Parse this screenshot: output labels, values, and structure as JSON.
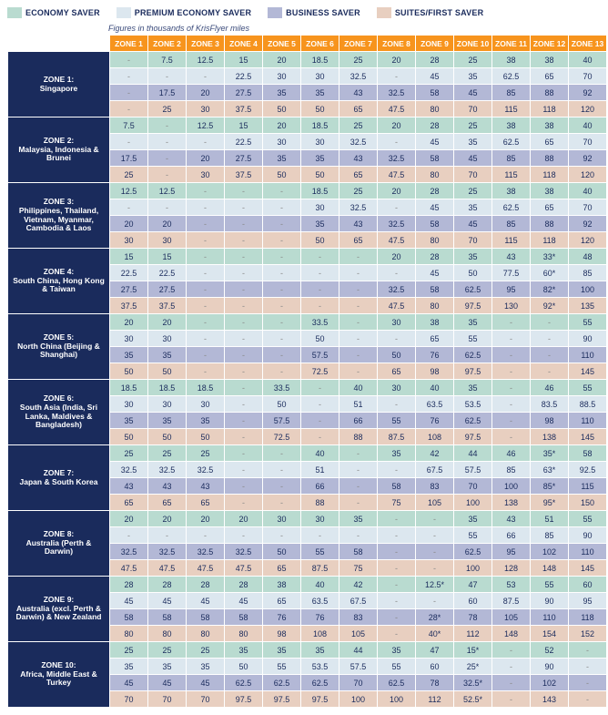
{
  "legend": [
    {
      "label": "ECONOMY SAVER",
      "color": "#b9dbd0"
    },
    {
      "label": "PREMIUM ECONOMY SAVER",
      "color": "#dce7ef"
    },
    {
      "label": "BUSINESS SAVER",
      "color": "#b3b8d6"
    },
    {
      "label": "SUITES/FIRST SAVER",
      "color": "#e8cfc0"
    }
  ],
  "subtitle": "Figures in thousands of KrisFlyer miles",
  "zone_cols": [
    "ZONE 1",
    "ZONE 2",
    "ZONE 3",
    "ZONE 4",
    "ZONE 5",
    "ZONE 6",
    "ZONE 7",
    "ZONE 8",
    "ZONE 9",
    "ZONE 10",
    "ZONE 11",
    "ZONE 12",
    "ZONE 13"
  ],
  "row_headers": [
    "ZONE 1:\nSingapore",
    "ZONE 2:\nMalaysia, Indonesia & Brunei",
    "ZONE 3:\nPhilippines, Thailand, Vietnam, Myanmar, Cambodia & Laos",
    "ZONE 4:\nSouth China, Hong Kong & Taiwan",
    "ZONE 5:\nNorth China (Beijing & Shanghai)",
    "ZONE 6:\nSouth Asia (India, Sri Lanka, Maldives & Bangladesh)",
    "ZONE 7:\nJapan & South Korea",
    "ZONE 8:\nAustralia (Perth & Darwin)",
    "ZONE 9:\nAustralia (excl. Perth & Darwin) & New Zealand",
    "ZONE 10:\nAfrica, Middle East & Turkey"
  ],
  "class_colors": [
    "#b9dbd0",
    "#dce7ef",
    "#b3b8d6",
    "#e8cfc0"
  ],
  "header_bg": "#f7941d",
  "rowhdr_bg": "#1a2b5c",
  "text_color": "#1a2b5c",
  "cell_fontsize": 9,
  "header_fontsize": 8.5,
  "dash": "-",
  "data": [
    [
      [
        "-",
        "7.5",
        "12.5",
        "15",
        "20",
        "18.5",
        "25",
        "20",
        "28",
        "25",
        "38",
        "38",
        "40"
      ],
      [
        "-",
        "-",
        "-",
        "22.5",
        "30",
        "30",
        "32.5",
        "-",
        "45",
        "35",
        "62.5",
        "65",
        "70"
      ],
      [
        "-",
        "17.5",
        "20",
        "27.5",
        "35",
        "35",
        "43",
        "32.5",
        "58",
        "45",
        "85",
        "88",
        "92"
      ],
      [
        "-",
        "25",
        "30",
        "37.5",
        "50",
        "50",
        "65",
        "47.5",
        "80",
        "70",
        "115",
        "118",
        "120"
      ]
    ],
    [
      [
        "7.5",
        "-",
        "12.5",
        "15",
        "20",
        "18.5",
        "25",
        "20",
        "28",
        "25",
        "38",
        "38",
        "40"
      ],
      [
        "-",
        "-",
        "-",
        "22.5",
        "30",
        "30",
        "32.5",
        "-",
        "45",
        "35",
        "62.5",
        "65",
        "70"
      ],
      [
        "17.5",
        "-",
        "20",
        "27.5",
        "35",
        "35",
        "43",
        "32.5",
        "58",
        "45",
        "85",
        "88",
        "92"
      ],
      [
        "25",
        "-",
        "30",
        "37.5",
        "50",
        "50",
        "65",
        "47.5",
        "80",
        "70",
        "115",
        "118",
        "120"
      ]
    ],
    [
      [
        "12.5",
        "12.5",
        "-",
        "-",
        "-",
        "18.5",
        "25",
        "20",
        "28",
        "25",
        "38",
        "38",
        "40"
      ],
      [
        "-",
        "-",
        "-",
        "-",
        "-",
        "30",
        "32.5",
        "-",
        "45",
        "35",
        "62.5",
        "65",
        "70"
      ],
      [
        "20",
        "20",
        "-",
        "-",
        "-",
        "35",
        "43",
        "32.5",
        "58",
        "45",
        "85",
        "88",
        "92"
      ],
      [
        "30",
        "30",
        "-",
        "-",
        "-",
        "50",
        "65",
        "47.5",
        "80",
        "70",
        "115",
        "118",
        "120"
      ]
    ],
    [
      [
        "15",
        "15",
        "-",
        "-",
        "-",
        "-",
        "-",
        "20",
        "28",
        "35",
        "43",
        "33*",
        "48"
      ],
      [
        "22.5",
        "22.5",
        "-",
        "-",
        "-",
        "-",
        "-",
        "-",
        "45",
        "50",
        "77.5",
        "60*",
        "85"
      ],
      [
        "27.5",
        "27.5",
        "-",
        "-",
        "-",
        "-",
        "-",
        "32.5",
        "58",
        "62.5",
        "95",
        "82*",
        "100"
      ],
      [
        "37.5",
        "37.5",
        "-",
        "-",
        "-",
        "-",
        "-",
        "47.5",
        "80",
        "97.5",
        "130",
        "92*",
        "135"
      ]
    ],
    [
      [
        "20",
        "20",
        "-",
        "-",
        "-",
        "33.5",
        "-",
        "30",
        "38",
        "35",
        "-",
        "-",
        "55"
      ],
      [
        "30",
        "30",
        "-",
        "-",
        "-",
        "50",
        "-",
        "-",
        "65",
        "55",
        "-",
        "-",
        "90"
      ],
      [
        "35",
        "35",
        "-",
        "-",
        "-",
        "57.5",
        "-",
        "50",
        "76",
        "62.5",
        "-",
        "-",
        "110"
      ],
      [
        "50",
        "50",
        "-",
        "-",
        "-",
        "72.5",
        "-",
        "65",
        "98",
        "97.5",
        "-",
        "-",
        "145"
      ]
    ],
    [
      [
        "18.5",
        "18.5",
        "18.5",
        "-",
        "33.5",
        "-",
        "40",
        "30",
        "40",
        "35",
        "-",
        "46",
        "55"
      ],
      [
        "30",
        "30",
        "30",
        "-",
        "50",
        "-",
        "51",
        "-",
        "63.5",
        "53.5",
        "-",
        "83.5",
        "88.5"
      ],
      [
        "35",
        "35",
        "35",
        "-",
        "57.5",
        "-",
        "66",
        "55",
        "76",
        "62.5",
        "-",
        "98",
        "110"
      ],
      [
        "50",
        "50",
        "50",
        "-",
        "72.5",
        "-",
        "88",
        "87.5",
        "108",
        "97.5",
        "-",
        "138",
        "145"
      ]
    ],
    [
      [
        "25",
        "25",
        "25",
        "-",
        "-",
        "40",
        "-",
        "35",
        "42",
        "44",
        "46",
        "35*",
        "58"
      ],
      [
        "32.5",
        "32.5",
        "32.5",
        "-",
        "-",
        "51",
        "-",
        "-",
        "67.5",
        "57.5",
        "85",
        "63*",
        "92.5"
      ],
      [
        "43",
        "43",
        "43",
        "-",
        "-",
        "66",
        "-",
        "58",
        "83",
        "70",
        "100",
        "85*",
        "115"
      ],
      [
        "65",
        "65",
        "65",
        "-",
        "-",
        "88",
        "-",
        "75",
        "105",
        "100",
        "138",
        "95*",
        "150"
      ]
    ],
    [
      [
        "20",
        "20",
        "20",
        "20",
        "30",
        "30",
        "35",
        "-",
        "-",
        "35",
        "43",
        "51",
        "55"
      ],
      [
        "-",
        "-",
        "-",
        "-",
        "-",
        "-",
        "-",
        "-",
        "-",
        "55",
        "66",
        "85",
        "90"
      ],
      [
        "32.5",
        "32.5",
        "32.5",
        "32.5",
        "50",
        "55",
        "58",
        "-",
        "-",
        "62.5",
        "95",
        "102",
        "110"
      ],
      [
        "47.5",
        "47.5",
        "47.5",
        "47.5",
        "65",
        "87.5",
        "75",
        "-",
        "-",
        "100",
        "128",
        "148",
        "145"
      ]
    ],
    [
      [
        "28",
        "28",
        "28",
        "28",
        "38",
        "40",
        "42",
        "-",
        "12.5*",
        "47",
        "53",
        "55",
        "60"
      ],
      [
        "45",
        "45",
        "45",
        "45",
        "65",
        "63.5",
        "67.5",
        "-",
        "-",
        "60",
        "87.5",
        "90",
        "95"
      ],
      [
        "58",
        "58",
        "58",
        "58",
        "76",
        "76",
        "83",
        "-",
        "28*",
        "78",
        "105",
        "110",
        "118"
      ],
      [
        "80",
        "80",
        "80",
        "80",
        "98",
        "108",
        "105",
        "-",
        "40*",
        "112",
        "148",
        "154",
        "152"
      ]
    ],
    [
      [
        "25",
        "25",
        "25",
        "35",
        "35",
        "35",
        "44",
        "35",
        "47",
        "15*",
        "-",
        "52",
        "-"
      ],
      [
        "35",
        "35",
        "35",
        "50",
        "55",
        "53.5",
        "57.5",
        "55",
        "60",
        "25*",
        "-",
        "90",
        "-"
      ],
      [
        "45",
        "45",
        "45",
        "62.5",
        "62.5",
        "62.5",
        "70",
        "62.5",
        "78",
        "32.5*",
        "-",
        "102",
        "-"
      ],
      [
        "70",
        "70",
        "70",
        "97.5",
        "97.5",
        "97.5",
        "100",
        "100",
        "112",
        "52.5*",
        "-",
        "143",
        "-"
      ]
    ]
  ]
}
